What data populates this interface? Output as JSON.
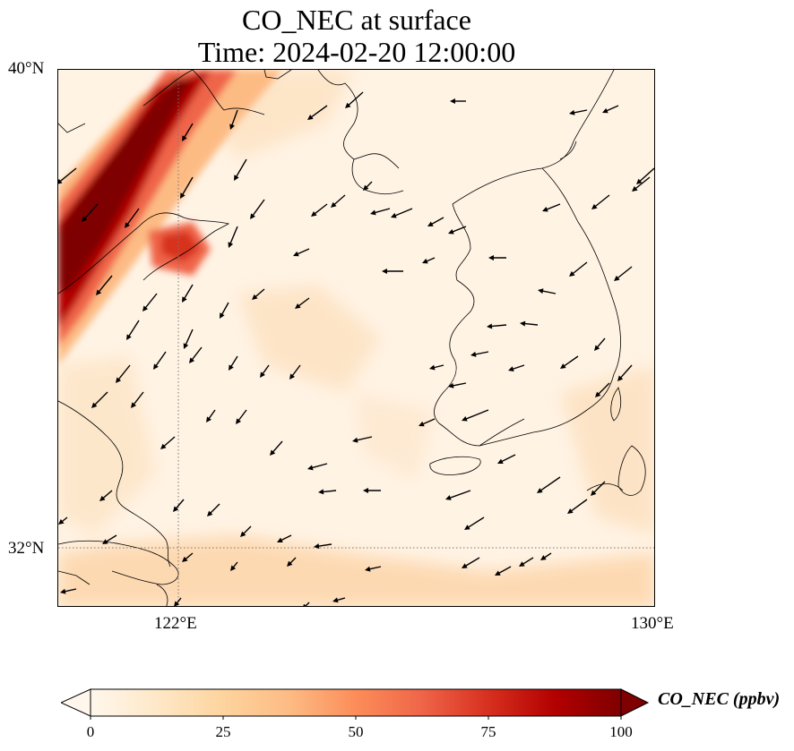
{
  "title": {
    "line1": "CO_NEC at surface",
    "line2": "Time: 2024-02-20 12:00:00"
  },
  "map": {
    "lat_labels": [
      "40°N",
      "32°N"
    ],
    "lon_labels": [
      "122°E",
      "130°E"
    ],
    "gridline_style": "dotted"
  },
  "colorbar": {
    "label": "CO_NEC (ppbv)",
    "ticks": [
      "0",
      "25",
      "50",
      "75",
      "100"
    ],
    "min": 0,
    "max": 100,
    "extend": "both",
    "colormap": "OrRd",
    "colors": [
      "#fff7ec",
      "#fee8c8",
      "#fdd49e",
      "#fdbb84",
      "#fc8d59",
      "#ef6548",
      "#d7301f",
      "#b30000",
      "#7f0000"
    ]
  }
}
